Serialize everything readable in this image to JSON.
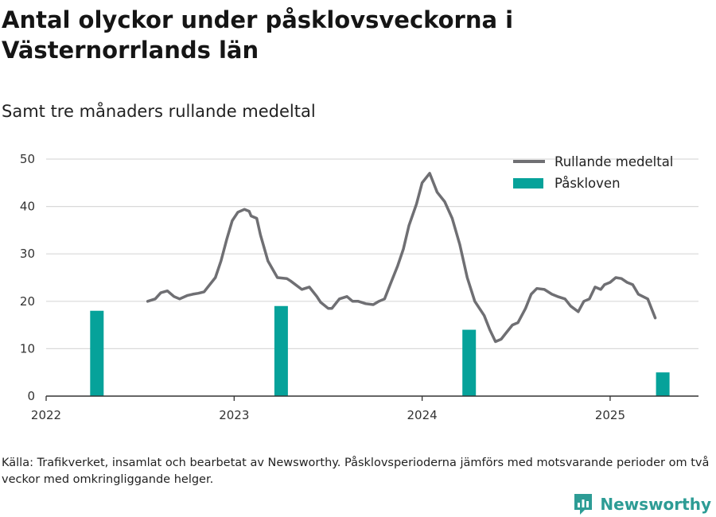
{
  "title": "Antal olyckor under påsklovsveckorna i Västernorrlands län",
  "subtitle": "Samt tre månaders rullande medeltal",
  "source": "Källa: Trafikverket, insamlat och bearbetat av Newsworthy. Påsklovsperioderna jämförs med motsvarande perioder om två veckor med omkringliggande helger.",
  "brand": "Newsworthy",
  "colors": {
    "line": "#6f6f73",
    "bar": "#06a29a",
    "grid": "#d9d9d9",
    "axis": "#333333",
    "brand": "#2d9c95"
  },
  "chart_data": {
    "type": "bar+line",
    "ylim": [
      0,
      50
    ],
    "xlim": [
      2022,
      2025.47
    ],
    "yticks": [
      0,
      10,
      20,
      30,
      40,
      50
    ],
    "xticks": [
      2022,
      2023,
      2024,
      2025
    ],
    "xtick_labels": [
      "2022",
      "2023",
      "2024",
      "2025"
    ],
    "grid": true,
    "legend_position": "top-right",
    "series": [
      {
        "name": "Rullande medeltal",
        "kind": "line",
        "points": [
          [
            2022.54,
            20
          ],
          [
            2022.58,
            20.5
          ],
          [
            2022.61,
            21.8
          ],
          [
            2022.645,
            22.2
          ],
          [
            2022.68,
            21
          ],
          [
            2022.71,
            20.5
          ],
          [
            2022.75,
            21.2
          ],
          [
            2022.78,
            21.5
          ],
          [
            2022.81,
            21.7
          ],
          [
            2022.84,
            22
          ],
          [
            2022.87,
            23.5
          ],
          [
            2022.9,
            25
          ],
          [
            2022.93,
            28.5
          ],
          [
            2022.96,
            33
          ],
          [
            2022.99,
            37
          ],
          [
            2023.02,
            38.8
          ],
          [
            2023.055,
            39.4
          ],
          [
            2023.08,
            39
          ],
          [
            2023.09,
            38
          ],
          [
            2023.12,
            37.5
          ],
          [
            2023.14,
            34
          ],
          [
            2023.18,
            28.5
          ],
          [
            2023.23,
            25
          ],
          [
            2023.28,
            24.8
          ],
          [
            2023.3,
            24.3
          ],
          [
            2023.36,
            22.5
          ],
          [
            2023.4,
            23
          ],
          [
            2023.44,
            21
          ],
          [
            2023.46,
            19.8
          ],
          [
            2023.5,
            18.5
          ],
          [
            2023.52,
            18.5
          ],
          [
            2023.56,
            20.5
          ],
          [
            2023.6,
            21
          ],
          [
            2023.63,
            20
          ],
          [
            2023.66,
            20
          ],
          [
            2023.7,
            19.5
          ],
          [
            2023.74,
            19.3
          ],
          [
            2023.77,
            20
          ],
          [
            2023.8,
            20.5
          ],
          [
            2023.83,
            23.5
          ],
          [
            2023.87,
            27.5
          ],
          [
            2023.9,
            31
          ],
          [
            2023.93,
            36
          ],
          [
            2023.97,
            40.5
          ],
          [
            2024.0,
            45
          ],
          [
            2024.04,
            47
          ],
          [
            2024.08,
            43
          ],
          [
            2024.12,
            41
          ],
          [
            2024.16,
            37.5
          ],
          [
            2024.2,
            32
          ],
          [
            2024.24,
            25
          ],
          [
            2024.28,
            20
          ],
          [
            2024.33,
            17
          ],
          [
            2024.36,
            14
          ],
          [
            2024.39,
            11.5
          ],
          [
            2024.42,
            12
          ],
          [
            2024.45,
            13.5
          ],
          [
            2024.48,
            15
          ],
          [
            2024.51,
            15.5
          ],
          [
            2024.55,
            18.5
          ],
          [
            2024.58,
            21.5
          ],
          [
            2024.61,
            22.7
          ],
          [
            2024.65,
            22.5
          ],
          [
            2024.69,
            21.5
          ],
          [
            2024.72,
            21
          ],
          [
            2024.76,
            20.5
          ],
          [
            2024.79,
            19
          ],
          [
            2024.83,
            17.8
          ],
          [
            2024.86,
            20
          ],
          [
            2024.89,
            20.5
          ],
          [
            2024.92,
            23
          ],
          [
            2024.95,
            22.5
          ],
          [
            2024.97,
            23.5
          ],
          [
            2025.0,
            24
          ],
          [
            2025.03,
            25
          ],
          [
            2025.06,
            24.8
          ],
          [
            2025.09,
            24
          ],
          [
            2025.12,
            23.5
          ],
          [
            2025.15,
            21.5
          ],
          [
            2025.2,
            20.5
          ],
          [
            2025.24,
            16.5
          ]
        ]
      },
      {
        "name": "Påskloven",
        "kind": "bar",
        "points": [
          [
            2022.27,
            18
          ],
          [
            2023.25,
            19
          ],
          [
            2024.25,
            14
          ],
          [
            2025.28,
            5
          ]
        ]
      }
    ]
  }
}
